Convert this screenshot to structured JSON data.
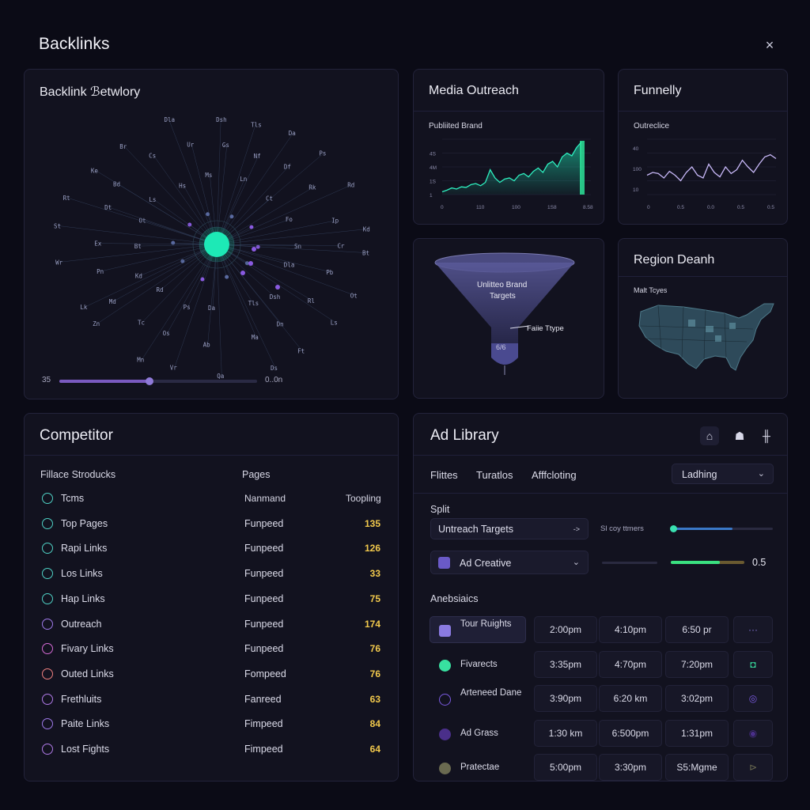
{
  "app": {
    "title": "Backlinks",
    "close": "×"
  },
  "network": {
    "title": "Backlink ℬetwlory",
    "slider_left": "35",
    "slider_right": "0..0n",
    "slider_value": 0.35,
    "labels": [
      "Dla",
      "Dsh",
      "Tls",
      "Da",
      "Ps",
      "Rd",
      "Kd",
      "Bt",
      "Ot",
      "Ls",
      "Hs",
      "Ms",
      "Ln",
      "Ct",
      "Fo",
      "Sn",
      "Rl",
      "Dn",
      "Ma",
      "Ab",
      "Os",
      "Tc",
      "Md",
      "Pn",
      "Ex",
      "Dt",
      "Bd",
      "Cs",
      "Ur",
      "Gs",
      "Nf",
      "Df",
      "Rk",
      "Ip",
      "Cr",
      "Pb",
      "Ft",
      "Ds",
      "Qa",
      "Vr",
      "Mn",
      "Zn",
      "Lk",
      "Wr",
      "St",
      "Rt",
      "Ke",
      "Br"
    ]
  },
  "media": {
    "title": "Media Outreach",
    "subtitle": "Publiited Brand",
    "x_ticks": [
      "0",
      "110",
      "100",
      "1S8",
      "8.58"
    ],
    "y_ticks": [
      "",
      "4S",
      "4M",
      "1S",
      "1"
    ]
  },
  "funnelly": {
    "title": "Funnelly",
    "subtitle": "Outreclice",
    "x_ticks": [
      "0",
      "0.5",
      "0.0",
      "0.5",
      "0.5"
    ],
    "y_ticks": [
      "40",
      "100",
      "10"
    ]
  },
  "funnel": {
    "label_line1": "Unlitteo Brand",
    "label_line2": "Targets",
    "side_label": "Faiie Ttype",
    "bottom_label": "6/6"
  },
  "region": {
    "title": "Region Deanh",
    "subtitle": "Malt Tcyes"
  },
  "competitor": {
    "title": "Competitor",
    "col1": "Fillace Stroducks",
    "col2": "Pages",
    "sub_col2": "Nanmand",
    "sub_col3": "Toopling",
    "rows": [
      {
        "name": "Tcms",
        "src": "",
        "val": "",
        "color": "#4fd1c5"
      },
      {
        "name": "Top Pages",
        "src": "Funpeed",
        "val": "135",
        "color": "#4fd1c5"
      },
      {
        "name": "Rapi Links",
        "src": "Funpeed",
        "val": "126",
        "color": "#4fd1c5"
      },
      {
        "name": "Los Links",
        "src": "Funpeed",
        "val": "33",
        "color": "#4fd1c5"
      },
      {
        "name": "Hap Links",
        "src": "Funpeed",
        "val": "75",
        "color": "#4fd1c5"
      },
      {
        "name": "Outreach",
        "src": "Funpeed",
        "val": "174",
        "color": "#9f7aea"
      },
      {
        "name": "Fivary Links",
        "src": "Funpeed",
        "val": "76",
        "color": "#d56ad5"
      },
      {
        "name": "Outed Links",
        "src": "Fompeed",
        "val": "76",
        "color": "#f08080"
      },
      {
        "name": "Frethluits",
        "src": "Fanreed",
        "val": "63",
        "color": "#b07ae8"
      },
      {
        "name": "Paite Links",
        "src": "Fimpeed",
        "val": "84",
        "color": "#9f7aea"
      },
      {
        "name": "Lost Fights",
        "src": "Fimpeed",
        "val": "64",
        "color": "#b07ae8"
      }
    ]
  },
  "ad_library": {
    "title": "Ad Library",
    "icons": [
      "home-icon",
      "shape-icon",
      "grid-icon"
    ],
    "tabs": [
      "Flittes",
      "Turatlos",
      "Afffcloting"
    ],
    "dropdown": "Ladhing",
    "split_label": "Split",
    "outreach_select": "Untreach Targets",
    "outreach_arrow": "->",
    "slider_label": "Sl coy ttmers",
    "slider_value": 0.6,
    "creative_select": "Ad Creative",
    "creative_progress": 0.67,
    "creative_value": "0.5",
    "analytics_label": "Anebsiaics",
    "rows": [
      {
        "name": "Tour Ruights",
        "c1": "2:00pm",
        "c2": "4:10pm",
        "c3": "6:50 pr",
        "action": "···",
        "icon_color": "#8a7ae0",
        "icon_shape": "square"
      },
      {
        "name": "Fivarects",
        "c1": "3:35pm",
        "c2": "4:70pm",
        "c3": "7:20pm",
        "action": "◘",
        "icon_color": "#38e0a0",
        "icon_shape": "clover"
      },
      {
        "name": "Arteneed Dane",
        "c1": "3:90pm",
        "c2": "6:20 km",
        "c3": "3:02pm",
        "action": "◎",
        "icon_color": "#7a5ae0",
        "icon_shape": "circle"
      },
      {
        "name": "Ad Grass",
        "c1": "1:30 km",
        "c2": "6:500pm",
        "c3": "1:31pm",
        "action": "◉",
        "icon_color": "#4a2f8a",
        "icon_shape": "dot"
      },
      {
        "name": "Pratectae",
        "c1": "5:00pm",
        "c2": "3:30pm",
        "c3": "S5:Mgme",
        "action": "⊳",
        "icon_color": "#6a6a50",
        "icon_shape": "dot"
      }
    ]
  }
}
